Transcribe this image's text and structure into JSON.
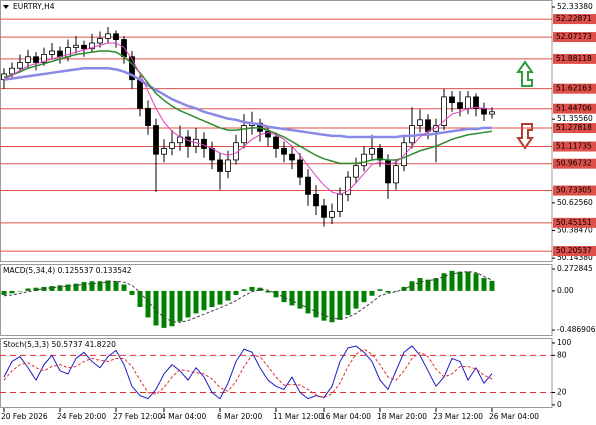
{
  "chart_data": [
    {
      "type": "candlestick",
      "title": "EURTRY,H4",
      "categories": [
        "20 Feb 2026",
        null,
        null,
        null,
        null,
        null,
        null,
        "24 Feb 20:00",
        null,
        null,
        null,
        null,
        null,
        null,
        "27 Feb 12:00",
        null,
        null,
        null,
        null,
        null,
        "4 Mar 04:00",
        null,
        null,
        null,
        null,
        null,
        null,
        "6 Mar 20:00",
        null,
        null,
        null,
        null,
        null,
        null,
        "11 Mar 12:00",
        null,
        null,
        null,
        null,
        null,
        "16 Mar 04:00",
        null,
        null,
        null,
        null,
        null,
        null,
        "18 Mar 20:00",
        null,
        null,
        null,
        null,
        null,
        null,
        "23 Mar 12:00",
        null,
        null,
        null,
        null,
        null,
        null,
        "26 Mar 04:00"
      ],
      "candles": [
        [
          51.7,
          51.8,
          51.62,
          51.75
        ],
        [
          51.75,
          51.85,
          51.7,
          51.8
        ],
        [
          51.8,
          51.92,
          51.76,
          51.85
        ],
        [
          51.85,
          51.96,
          51.8,
          51.9
        ],
        [
          51.9,
          51.94,
          51.78,
          51.85
        ],
        [
          51.85,
          51.98,
          51.82,
          51.92
        ],
        [
          51.92,
          52.02,
          51.88,
          51.95
        ],
        [
          51.95,
          51.99,
          51.84,
          51.9
        ],
        [
          51.9,
          52.05,
          51.86,
          51.98
        ],
        [
          51.98,
          52.08,
          51.93,
          52.0
        ],
        [
          52.0,
          52.04,
          51.9,
          51.97
        ],
        [
          51.97,
          52.1,
          51.94,
          52.02
        ],
        [
          52.02,
          52.12,
          51.98,
          52.06
        ],
        [
          52.06,
          52.16,
          52.02,
          52.1
        ],
        [
          52.1,
          52.13,
          51.98,
          52.05
        ],
        [
          52.05,
          52.08,
          51.84,
          51.9
        ],
        [
          51.9,
          51.95,
          51.62,
          51.7
        ],
        [
          51.7,
          51.74,
          51.38,
          51.45
        ],
        [
          51.45,
          51.52,
          51.22,
          51.3
        ],
        [
          51.3,
          51.36,
          50.72,
          51.05
        ],
        [
          51.05,
          51.18,
          50.98,
          51.1
        ],
        [
          51.1,
          51.26,
          51.04,
          51.15
        ],
        [
          51.15,
          51.3,
          51.08,
          51.2
        ],
        [
          51.2,
          51.26,
          51.02,
          51.12
        ],
        [
          51.12,
          51.28,
          51.06,
          51.18
        ],
        [
          51.18,
          51.24,
          51.02,
          51.1
        ],
        [
          51.1,
          51.16,
          50.92,
          51.0
        ],
        [
          51.0,
          51.06,
          50.74,
          50.9
        ],
        [
          50.9,
          51.08,
          50.84,
          51.0
        ],
        [
          51.0,
          51.22,
          50.96,
          51.15
        ],
        [
          51.15,
          51.4,
          51.1,
          51.3
        ],
        [
          51.3,
          51.42,
          51.22,
          51.32
        ],
        [
          51.32,
          51.36,
          51.16,
          51.25
        ],
        [
          51.25,
          51.3,
          51.12,
          51.2
        ],
        [
          51.2,
          51.24,
          51.02,
          51.1
        ],
        [
          51.1,
          51.16,
          50.98,
          51.05
        ],
        [
          51.05,
          51.12,
          50.92,
          51.0
        ],
        [
          51.0,
          51.06,
          50.78,
          50.85
        ],
        [
          50.85,
          50.92,
          50.6,
          50.7
        ],
        [
          50.7,
          50.78,
          50.52,
          50.6
        ],
        [
          50.6,
          50.66,
          50.42,
          50.5
        ],
        [
          50.5,
          50.62,
          50.44,
          50.55
        ],
        [
          50.55,
          50.76,
          50.5,
          50.7
        ],
        [
          50.7,
          50.9,
          50.64,
          50.85
        ],
        [
          50.85,
          51.02,
          50.8,
          50.95
        ],
        [
          50.95,
          51.12,
          50.9,
          51.05
        ],
        [
          51.05,
          51.22,
          51.0,
          51.1
        ],
        [
          51.1,
          51.14,
          50.94,
          51.0
        ],
        [
          51.0,
          51.05,
          50.66,
          50.8
        ],
        [
          50.8,
          51.0,
          50.74,
          50.95
        ],
        [
          50.95,
          51.22,
          50.9,
          51.15
        ],
        [
          51.15,
          51.46,
          51.1,
          51.3
        ],
        [
          51.3,
          51.44,
          51.24,
          51.35
        ],
        [
          51.35,
          51.4,
          51.18,
          51.25
        ],
        [
          51.25,
          51.36,
          50.98,
          51.3
        ],
        [
          51.3,
          51.62,
          51.26,
          51.55
        ],
        [
          51.55,
          51.6,
          51.42,
          51.5
        ],
        [
          51.5,
          51.6,
          51.38,
          51.45
        ],
        [
          51.45,
          51.6,
          51.4,
          51.55
        ],
        [
          51.55,
          51.58,
          51.38,
          51.45
        ],
        [
          51.45,
          51.5,
          51.34,
          51.4
        ],
        [
          51.4,
          51.46,
          51.36,
          51.42
        ]
      ],
      "candle_colors": {
        "up": "#ffffff",
        "down": "#000000",
        "outline": "#000000"
      },
      "series": [
        {
          "color": "#8a8ae6",
          "width": 2.5,
          "values": [
            51.7,
            51.71,
            51.72,
            51.73,
            51.74,
            51.75,
            51.76,
            51.77,
            51.78,
            51.79,
            51.8,
            51.8,
            51.8,
            51.8,
            51.79,
            51.77,
            51.74,
            51.7,
            51.65,
            51.61,
            51.57,
            51.53,
            51.5,
            51.47,
            51.45,
            51.42,
            51.4,
            51.38,
            51.36,
            51.35,
            51.33,
            51.32,
            51.31,
            51.29,
            51.28,
            51.27,
            51.26,
            51.25,
            51.24,
            51.23,
            51.22,
            51.21,
            51.21,
            51.2,
            51.2,
            51.2,
            51.2,
            51.2,
            51.2,
            51.2,
            51.21,
            51.21,
            51.22,
            51.22,
            51.23,
            51.24,
            51.25,
            51.26,
            51.27,
            51.27,
            51.28,
            51.28
          ]
        },
        {
          "color": "#2e8b2e",
          "width": 1.5,
          "values": [
            51.72,
            51.74,
            51.77,
            51.8,
            51.82,
            51.84,
            51.86,
            51.88,
            51.9,
            51.92,
            51.93,
            51.94,
            51.95,
            51.95,
            51.94,
            51.9,
            51.84,
            51.76,
            51.67,
            51.58,
            51.52,
            51.47,
            51.43,
            51.4,
            51.37,
            51.34,
            51.31,
            51.28,
            51.26,
            51.26,
            51.27,
            51.28,
            51.28,
            51.26,
            51.23,
            51.2,
            51.16,
            51.12,
            51.08,
            51.04,
            51.01,
            50.99,
            50.97,
            50.97,
            50.97,
            50.98,
            51.0,
            51.01,
            51.0,
            51.0,
            51.02,
            51.05,
            51.08,
            51.1,
            51.12,
            51.15,
            51.18,
            51.2,
            51.22,
            51.23,
            51.24,
            51.25
          ]
        },
        {
          "color": "#e040c0",
          "width": 1,
          "values": [
            51.7,
            51.74,
            51.78,
            51.82,
            51.84,
            51.86,
            51.88,
            51.9,
            51.92,
            51.94,
            51.96,
            51.98,
            52.0,
            52.02,
            52.02,
            51.98,
            51.88,
            51.75,
            51.6,
            51.45,
            51.33,
            51.25,
            51.2,
            51.17,
            51.15,
            51.13,
            51.1,
            51.06,
            51.04,
            51.06,
            51.12,
            51.18,
            51.22,
            51.24,
            51.22,
            51.18,
            51.12,
            51.04,
            50.95,
            50.86,
            50.78,
            50.72,
            50.7,
            50.73,
            50.8,
            50.88,
            50.96,
            50.98,
            50.96,
            50.98,
            51.04,
            51.12,
            51.2,
            51.25,
            51.28,
            51.34,
            51.4,
            51.42,
            51.45,
            51.46,
            51.45,
            51.44
          ]
        }
      ],
      "ylim": [
        50.11,
        52.395
      ],
      "yticks": [
        {
          "value": 52.3338,
          "label": "52.33380"
        },
        {
          "value": 51.3556,
          "label": "51.35560"
        },
        {
          "value": 50.6256,
          "label": "50.62560"
        },
        {
          "value": 50.3847,
          "label": "50.38470"
        },
        {
          "value": 50.1438,
          "label": "50.14380"
        }
      ],
      "level_color": "#e0504a",
      "levels": [
        {
          "value": 52.22871,
          "label": "52.22871"
        },
        {
          "value": 52.07173,
          "label": "52.07173"
        },
        {
          "value": 51.88118,
          "label": "51.88118"
        },
        {
          "value": 51.62163,
          "label": "51.62163"
        },
        {
          "value": 51.44706,
          "label": "51.44706"
        },
        {
          "value": 51.27818,
          "label": "51.27818"
        },
        {
          "value": 51.11735,
          "label": "51.11735"
        },
        {
          "value": 50.96732,
          "label": "50.96732"
        },
        {
          "value": 50.73305,
          "label": "50.73305"
        },
        {
          "value": 50.45151,
          "label": "50.45151"
        },
        {
          "value": 50.20537,
          "label": "50.20537"
        }
      ]
    },
    {
      "type": "macd",
      "title": "MACD(5,34,4) 0.125537 0.133542",
      "series": [
        {
          "kind": "bar",
          "color": "#008000",
          "values": [
            -0.05,
            -0.03,
            0.0,
            0.03,
            0.04,
            0.05,
            0.06,
            0.07,
            0.08,
            0.09,
            0.11,
            0.12,
            0.12,
            0.13,
            0.12,
            0.08,
            -0.05,
            -0.2,
            -0.33,
            -0.43,
            -0.46,
            -0.44,
            -0.38,
            -0.33,
            -0.28,
            -0.24,
            -0.2,
            -0.17,
            -0.12,
            -0.05,
            0.02,
            0.05,
            0.04,
            -0.02,
            -0.08,
            -0.14,
            -0.18,
            -0.22,
            -0.28,
            -0.33,
            -0.37,
            -0.39,
            -0.36,
            -0.3,
            -0.22,
            -0.14,
            -0.06,
            0.02,
            -0.02,
            0.0,
            0.05,
            0.12,
            0.16,
            0.14,
            0.16,
            0.22,
            0.25,
            0.24,
            0.24,
            0.22,
            0.16,
            0.125537
          ]
        },
        {
          "kind": "line",
          "dash": true,
          "color": "#404040",
          "values": [
            -0.06,
            -0.05,
            -0.03,
            -0.01,
            0.01,
            0.03,
            0.04,
            0.05,
            0.06,
            0.07,
            0.08,
            0.09,
            0.1,
            0.11,
            0.12,
            0.11,
            0.07,
            -0.02,
            -0.13,
            -0.24,
            -0.33,
            -0.38,
            -0.39,
            -0.37,
            -0.33,
            -0.29,
            -0.25,
            -0.21,
            -0.17,
            -0.12,
            -0.06,
            -0.01,
            0.02,
            0.01,
            -0.03,
            -0.08,
            -0.12,
            -0.17,
            -0.21,
            -0.26,
            -0.3,
            -0.34,
            -0.35,
            -0.33,
            -0.28,
            -0.21,
            -0.14,
            -0.06,
            -0.03,
            -0.01,
            0.02,
            0.07,
            0.11,
            0.13,
            0.14,
            0.18,
            0.21,
            0.23,
            0.24,
            0.23,
            0.18,
            0.133542
          ]
        }
      ],
      "ylim": [
        -0.561,
        0.335
      ],
      "yticks": [
        0.272845,
        {
          "value": 0,
          "label": "0.00"
        },
        -0.486906
      ]
    },
    {
      "type": "stochastic",
      "title": "Stoch(5,3,3) 50.5737 41.8220",
      "series": [
        {
          "kind": "line",
          "color": "#1c1cc8",
          "values": [
            45,
            70,
            78,
            60,
            40,
            65,
            80,
            55,
            50,
            75,
            85,
            70,
            60,
            78,
            88,
            65,
            30,
            15,
            10,
            25,
            50,
            65,
            55,
            40,
            60,
            45,
            20,
            10,
            35,
            70,
            90,
            85,
            60,
            40,
            30,
            25,
            45,
            20,
            10,
            15,
            12,
            30,
            70,
            92,
            95,
            85,
            70,
            40,
            25,
            55,
            85,
            95,
            80,
            55,
            30,
            45,
            75,
            70,
            40,
            60,
            35,
            50.5737
          ]
        },
        {
          "kind": "line",
          "dash": true,
          "color": "#e03030",
          "values": [
            40,
            55,
            65,
            68,
            60,
            55,
            62,
            65,
            60,
            62,
            70,
            75,
            72,
            70,
            75,
            75,
            62,
            40,
            20,
            17,
            28,
            45,
            57,
            55,
            52,
            50,
            42,
            28,
            22,
            38,
            62,
            80,
            78,
            62,
            45,
            32,
            33,
            32,
            25,
            16,
            12,
            18,
            35,
            62,
            82,
            90,
            82,
            65,
            45,
            40,
            55,
            75,
            85,
            78,
            58,
            45,
            50,
            62,
            62,
            58,
            48,
            41.822
          ]
        }
      ],
      "ylim": [
        -5,
        108
      ],
      "yticks": [
        0,
        20,
        80,
        100
      ],
      "level_color": "#e03030",
      "levels": [
        20,
        80
      ]
    }
  ]
}
